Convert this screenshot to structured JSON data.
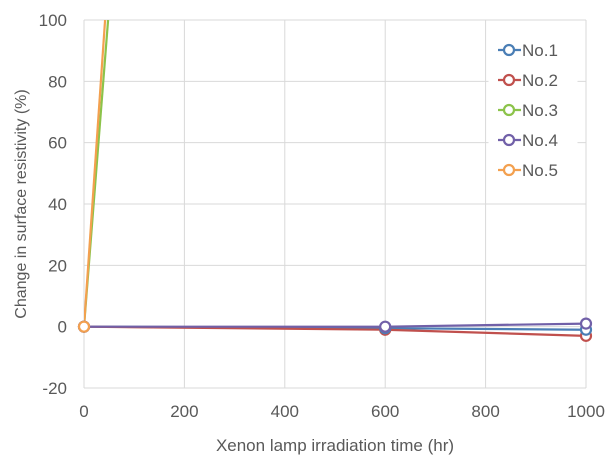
{
  "chart_data": {
    "type": "line",
    "xlabel": "Xenon lamp irradiation time (hr)",
    "ylabel": "Change in surface resistivity (%)",
    "xlim": [
      0,
      1000
    ],
    "ylim": [
      -20,
      100
    ],
    "x_ticks": [
      0,
      200,
      400,
      600,
      800,
      1000
    ],
    "y_ticks": [
      -20,
      0,
      20,
      40,
      60,
      80,
      100
    ],
    "grid": true,
    "legend_position": "top-right",
    "series": [
      {
        "name": "No.1",
        "color": "#4a7eb5",
        "x": [
          0,
          600,
          1000
        ],
        "y": [
          0,
          -0.5,
          -1
        ]
      },
      {
        "name": "No.2",
        "color": "#c0504d",
        "x": [
          0,
          600,
          1000
        ],
        "y": [
          0,
          -1,
          -3
        ]
      },
      {
        "name": "No.3",
        "color": "#8cc34a",
        "x": [
          0,
          48
        ],
        "y": [
          0,
          100
        ]
      },
      {
        "name": "No.4",
        "color": "#7160a8",
        "x": [
          0,
          600,
          1000
        ],
        "y": [
          0,
          0,
          1
        ]
      },
      {
        "name": "No.5",
        "color": "#f3a04f",
        "x": [
          0,
          42
        ],
        "y": [
          0,
          100
        ]
      }
    ],
    "markers_hidden_on": [
      "No.3",
      "No.5"
    ]
  }
}
